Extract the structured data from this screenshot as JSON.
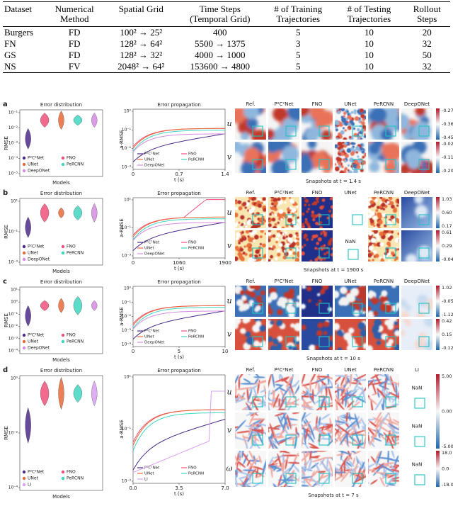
{
  "table": {
    "headers": [
      "Dataset",
      "Numerical Method",
      "Spatial Grid",
      "Time Steps (Temporal Grid)",
      "# of Training Trajectories",
      "# of Testing Trajectories",
      "Rollout Steps"
    ],
    "rows": [
      [
        "Burgers",
        "FD",
        "100² → 25²",
        "400",
        "5",
        "10",
        "20"
      ],
      [
        "FN",
        "FD",
        "128² → 64²",
        "5500 → 1375",
        "3",
        "10",
        "32"
      ],
      [
        "GS",
        "FD",
        "128² → 32²",
        "4000 → 1000",
        "5",
        "10",
        "50"
      ],
      [
        "NS",
        "FV",
        "2048² → 64²",
        "153600 → 4800",
        "5",
        "10",
        "32"
      ]
    ]
  },
  "figure": {
    "panels": [
      {
        "label": "a",
        "models": [
          {
            "name": "P²C²Net",
            "color": "#4b2a8a"
          },
          {
            "name": "FNO",
            "color": "#f0507a"
          },
          {
            "name": "UNet",
            "color": "#e86a3a"
          },
          {
            "name": "PeRCNN",
            "color": "#3fd6c0"
          },
          {
            "name": "DeepONet",
            "color": "#d48ce0"
          }
        ],
        "violin": {
          "title": "Error distribution",
          "ylabel": "RMSE",
          "xlabel": "Models",
          "yticks": [
            "10⁻¹",
            "10⁻²",
            "10⁻³",
            "10⁻⁴",
            "10⁻⁵"
          ]
        },
        "propagation": {
          "title": "Error propagation",
          "ylabel": "a-RMSE",
          "xlabel": "t (s)",
          "yticks": [
            "10⁰",
            "10⁻¹",
            "10⁻²",
            "10⁻³"
          ],
          "xticks": [
            "0",
            "0.7",
            "1.4"
          ]
        },
        "snapshots": {
          "columns": [
            "Ref.",
            "P²C²Net",
            "FNO",
            "UNet",
            "PeRCNN",
            "DeepONet"
          ],
          "rows": [
            "u",
            "v"
          ],
          "colorbars": [
            [
              "-0.27",
              "-0.36",
              "-0.45"
            ],
            [
              "-0.02",
              "-0.11",
              "-0.20"
            ]
          ],
          "caption": "Snapshots at t = 1.4 s"
        }
      },
      {
        "label": "b",
        "models": [
          {
            "name": "P²C²Net",
            "color": "#4b2a8a"
          },
          {
            "name": "FNO",
            "color": "#f0507a"
          },
          {
            "name": "UNet",
            "color": "#e86a3a"
          },
          {
            "name": "PeRCNN",
            "color": "#3fd6c0"
          },
          {
            "name": "DeepONet",
            "color": "#d48ce0"
          }
        ],
        "violin": {
          "title": "Error distribution",
          "ylabel": "RMSE",
          "xlabel": "Models",
          "yticks": [
            "10¹",
            "10⁻¹",
            "10⁻³"
          ]
        },
        "propagation": {
          "title": "Error propagation",
          "ylabel": "a-RMSE",
          "xlabel": "t (s)",
          "yticks": [
            "10¹",
            "10⁻¹",
            "10⁻³"
          ],
          "xticks": [
            "0",
            "1060",
            "1900"
          ]
        },
        "snapshots": {
          "columns": [
            "Ref.",
            "P²C²Net",
            "FNO",
            "UNet",
            "PeRCNN",
            "DeepONet"
          ],
          "rows": [
            "u",
            "v"
          ],
          "colorbars": [
            [
              "1.03",
              "0.60",
              "0.17"
            ],
            [
              "0.61",
              "0.29",
              "-0.04"
            ]
          ],
          "caption": "Snapshots at t = 1900 s",
          "missing": "NaN"
        }
      },
      {
        "label": "c",
        "models": [
          {
            "name": "P²C²Net",
            "color": "#4b2a8a"
          },
          {
            "name": "FNO",
            "color": "#f0507a"
          },
          {
            "name": "UNet",
            "color": "#e86a3a"
          },
          {
            "name": "PeRCNN",
            "color": "#3fd6c0"
          },
          {
            "name": "DeepONet",
            "color": "#d48ce0"
          }
        ],
        "violin": {
          "title": "Error distribution",
          "ylabel": "RMSE",
          "xlabel": "Models",
          "yticks": [
            "10¹",
            "10⁰",
            "10⁻¹",
            "10⁻²",
            "10⁻³",
            "10⁻⁴"
          ]
        },
        "propagation": {
          "title": "Error propagation",
          "ylabel": "a-RMSE",
          "xlabel": "t (s)",
          "yticks": [
            "10⁰",
            "10⁻¹",
            "10⁻²",
            "10⁻³",
            "10⁻⁴"
          ],
          "xticks": [
            "0",
            "5",
            "10"
          ]
        },
        "snapshots": {
          "columns": [
            "Ref.",
            "P²C²Net",
            "FNO",
            "UNet",
            "PeRCNN",
            "DeepONet"
          ],
          "rows": [
            "u",
            "v"
          ],
          "colorbars": [
            [
              "1.02",
              "-0.05",
              "-1.12"
            ],
            [
              "0.42",
              "0.15",
              "-0.12"
            ]
          ],
          "caption": "Snapshots at t = 10 s"
        }
      },
      {
        "label": "d",
        "models": [
          {
            "name": "P²C²Net",
            "color": "#4b2a8a"
          },
          {
            "name": "FNO",
            "color": "#f0507a"
          },
          {
            "name": "UNet",
            "color": "#e86a3a"
          },
          {
            "name": "PeRCNN",
            "color": "#3fd6c0"
          },
          {
            "name": "LI",
            "color": "#d9a0f0"
          }
        ],
        "violin": {
          "title": "Error distribution",
          "ylabel": "RMSE",
          "xlabel": "Models",
          "yticks": [
            "10⁰",
            "10⁻²",
            "10⁻⁴"
          ]
        },
        "propagation": {
          "title": "Error propagation",
          "ylabel": "a-RMSE",
          "xlabel": "t (s)",
          "yticks": [
            "10¹",
            "10⁻¹",
            "10⁻³"
          ],
          "xticks": [
            "0.0",
            "3.5",
            "7.0"
          ]
        },
        "snapshots": {
          "columns": [
            "Ref.",
            "P²C²Net",
            "FNO",
            "UNet",
            "PeRCNN",
            "LI"
          ],
          "rows": [
            "u",
            "v",
            "ω"
          ],
          "colorbars": [
            [
              "5.00",
              "0.00",
              "-5.00"
            ],
            [
              "18.0",
              "0.0",
              "-18.0"
            ]
          ],
          "caption": "Snapshots at t = 7 s",
          "missing": "NaN"
        }
      }
    ]
  }
}
